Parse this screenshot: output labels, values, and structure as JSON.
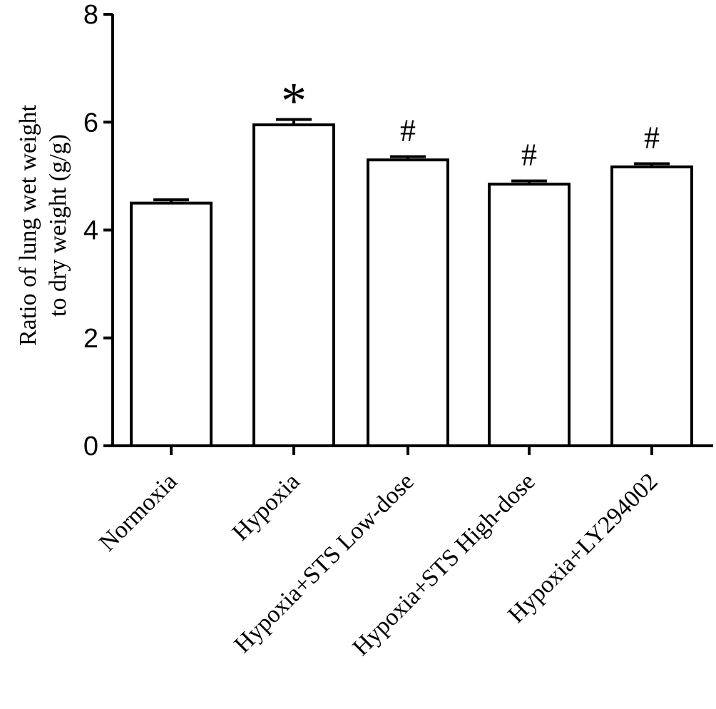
{
  "chart_data": {
    "type": "bar",
    "title": "",
    "xlabel": "",
    "ylabel_lines": [
      "Ratio of lung wet weight",
      "to dry weight (g/g)"
    ],
    "ylim": [
      0,
      8
    ],
    "yticks": [
      "0",
      "2",
      "4",
      "6",
      "8"
    ],
    "grid": false,
    "legend": "none",
    "bar_fill": "#ffffff",
    "bar_stroke": "#000000",
    "categories": [
      "Normoxia",
      "Hypoxia",
      "Hypoxia+STS Low-dose",
      "Hypoxia+STS High-dose",
      "Hypoxia+LY294002"
    ],
    "values": [
      4.5,
      5.95,
      5.3,
      4.85,
      5.17
    ],
    "errors": [
      0.06,
      0.1,
      0.06,
      0.06,
      0.06
    ],
    "annotations": [
      "",
      "*",
      "#",
      "#",
      "#"
    ]
  }
}
